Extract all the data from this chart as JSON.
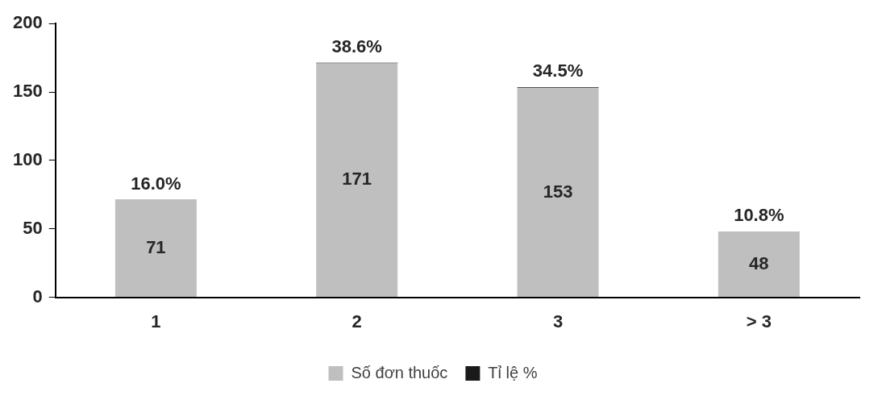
{
  "chart_data": {
    "type": "bar",
    "stacked": true,
    "categories": [
      "1",
      "2",
      "3",
      "> 3"
    ],
    "series": [
      {
        "name": "Số đơn thuốc",
        "color": "#bfbfbf",
        "values": [
          71,
          171,
          153,
          48
        ],
        "value_labels": [
          "71",
          "171",
          "153",
          "48"
        ]
      },
      {
        "name": "Tỉ lệ %",
        "color": "#1a1a1a",
        "values": [
          0.16,
          0.386,
          0.345,
          0.108
        ],
        "value_labels": [
          "16.0%",
          "38.6%",
          "34.5%",
          "10.8%"
        ]
      }
    ],
    "ylim": [
      0,
      200
    ],
    "yticks": [
      0,
      50,
      100,
      150,
      200
    ],
    "grid": false,
    "legend": "bottom"
  }
}
